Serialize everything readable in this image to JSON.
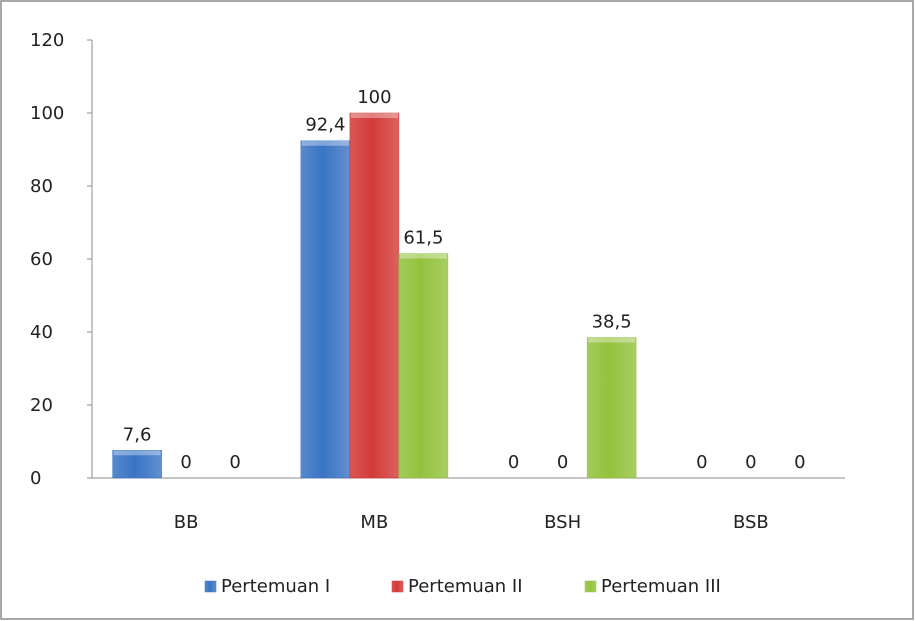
{
  "chart_data": {
    "type": "bar",
    "categories": [
      "BB",
      "MB",
      "BSH",
      "BSB"
    ],
    "series": [
      {
        "name": "Pertemuan I",
        "values": [
          7.6,
          92.4,
          0,
          0
        ],
        "labels": [
          "7,6",
          "92,4",
          "0",
          "0"
        ],
        "color": "#3A74C4"
      },
      {
        "name": "Pertemuan II",
        "values": [
          0,
          100,
          0,
          0
        ],
        "labels": [
          "0",
          "100",
          "0",
          "0"
        ],
        "color": "#D33A37"
      },
      {
        "name": "Pertemuan III",
        "values": [
          0,
          61.5,
          38.5,
          0
        ],
        "labels": [
          "0",
          "61,5",
          "38,5",
          "0"
        ],
        "color": "#93C23D"
      }
    ],
    "ylim": [
      0,
      120
    ],
    "yticks": [
      0,
      20,
      40,
      60,
      80,
      100,
      120
    ],
    "ytick_labels": [
      "0",
      "20",
      "40",
      "60",
      "80",
      "100",
      "120"
    ],
    "grid": false,
    "legend_position": "bottom"
  }
}
